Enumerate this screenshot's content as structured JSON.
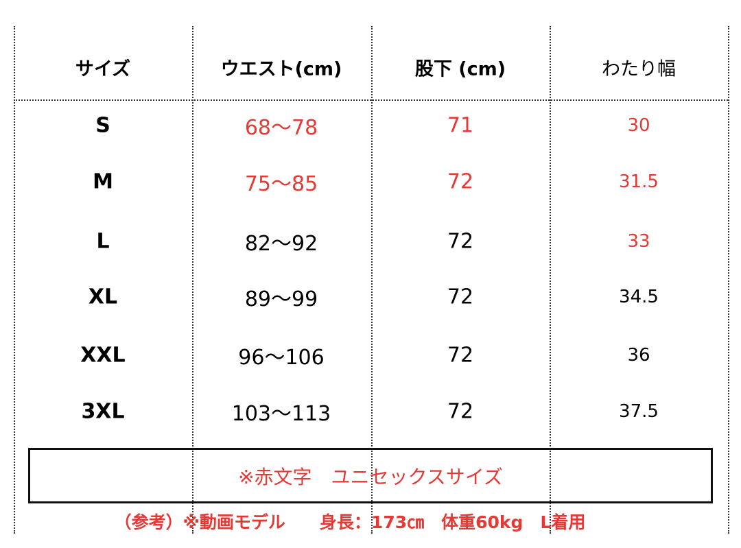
{
  "table": {
    "header": [
      "サイズ",
      "ウエスト(cm)",
      "股下 (cm)",
      "わたり幅"
    ],
    "rows": [
      [
        "S",
        "68〜78",
        "71",
        "30"
      ],
      [
        "M",
        "75〜85",
        "72",
        "31.5"
      ],
      [
        "L",
        "82〜92",
        "72",
        "33"
      ],
      [
        "XL",
        "89〜99",
        "72",
        "34.5"
      ],
      [
        "XXL",
        "96〜106",
        "72",
        "36"
      ],
      [
        "3XL",
        "103〜113",
        "72",
        "37.5"
      ]
    ],
    "cell_colors": [
      [
        "#000000",
        "#e53935",
        "#e53935",
        "#e53935"
      ],
      [
        "#000000",
        "#e53935",
        "#e53935",
        "#e53935"
      ],
      [
        "#000000",
        "#000000",
        "#000000",
        "#e53935"
      ],
      [
        "#000000",
        "#000000",
        "#000000",
        "#000000"
      ],
      [
        "#000000",
        "#000000",
        "#000000",
        "#000000"
      ],
      [
        "#000000",
        "#000000",
        "#000000",
        "#000000"
      ]
    ]
  },
  "note": "※赤文字　ユニセックスサイズ",
  "footer": "（参考）※動画モデル　　身長：173㎝　体重60kg　L着用"
}
